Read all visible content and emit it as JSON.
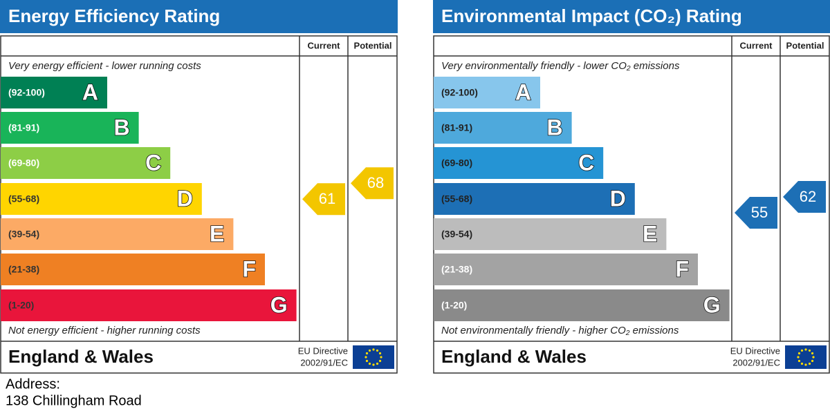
{
  "panels": [
    {
      "title": "Energy Efficiency Rating",
      "columns": [
        "Current",
        "Potential"
      ],
      "top_text": "Very energy efficient - lower running costs",
      "bottom_text": "Not energy efficient - higher running costs",
      "bands": [
        {
          "range": "(92-100)",
          "letter": "A",
          "color": "#008054",
          "text": "#ffffff"
        },
        {
          "range": "(81-91)",
          "letter": "B",
          "color": "#19b459",
          "text": "#ffffff"
        },
        {
          "range": "(69-80)",
          "letter": "C",
          "color": "#8dce46",
          "text": "#ffffff"
        },
        {
          "range": "(55-68)",
          "letter": "D",
          "color": "#ffd500",
          "text": "#333333"
        },
        {
          "range": "(39-54)",
          "letter": "E",
          "color": "#fcaa65",
          "text": "#333333"
        },
        {
          "range": "(21-38)",
          "letter": "F",
          "color": "#ef8023",
          "text": "#333333"
        },
        {
          "range": "(1-20)",
          "letter": "G",
          "color": "#e9153b",
          "text": "#333333"
        }
      ],
      "current": 61,
      "potential": 68,
      "arrow_color": "#f3c600",
      "footer": "England & Wales",
      "directive": [
        "EU Directive",
        "2002/91/EC"
      ]
    },
    {
      "title": "Environmental Impact (CO₂) Rating",
      "columns": [
        "Current",
        "Potential"
      ],
      "top_text": "Very environmentally friendly - lower CO₂ emissions",
      "bottom_text": "Not environmentally friendly - higher CO₂ emissions",
      "bands": [
        {
          "range": "(92-100)",
          "letter": "A",
          "color": "#87c6ec",
          "text": "#222222"
        },
        {
          "range": "(81-91)",
          "letter": "B",
          "color": "#4ea9dc",
          "text": "#222222"
        },
        {
          "range": "(69-80)",
          "letter": "C",
          "color": "#2594d4",
          "text": "#222222"
        },
        {
          "range": "(55-68)",
          "letter": "D",
          "color": "#1d6fb5",
          "text": "#222222"
        },
        {
          "range": "(39-54)",
          "letter": "E",
          "color": "#bcbcbc",
          "text": "#222222"
        },
        {
          "range": "(21-38)",
          "letter": "F",
          "color": "#a3a3a3",
          "text": "#ffffff"
        },
        {
          "range": "(1-20)",
          "letter": "G",
          "color": "#8a8a8a",
          "text": "#ffffff"
        }
      ],
      "current": 55,
      "potential": 62,
      "arrow_color": "#1d6fb5",
      "footer": "England & Wales",
      "directive": [
        "EU Directive",
        "2002/91/EC"
      ]
    }
  ],
  "address": {
    "label": "Address:",
    "line": "138 Chillingham Road"
  }
}
